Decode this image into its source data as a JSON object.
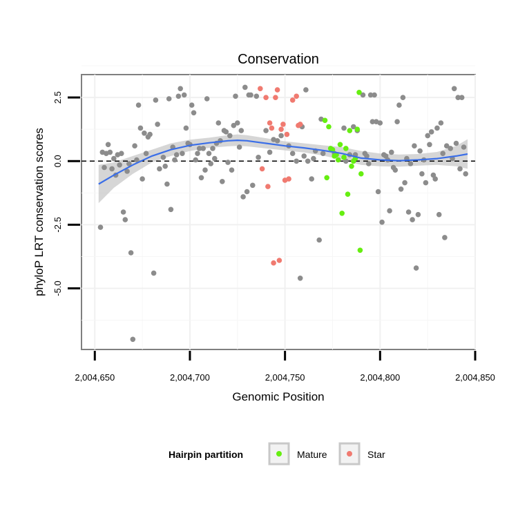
{
  "chart_data": {
    "type": "scatter",
    "title": "Conservation",
    "xlabel": "Genomic Position",
    "ylabel": "phyloP LRT conservation scores",
    "xlim": [
      2004643,
      2004850
    ],
    "ylim": [
      -7.4,
      3.4
    ],
    "x_ticks": [
      2004650,
      2004700,
      2004750,
      2004800,
      2004850
    ],
    "x_tick_labels": [
      "2,004,650",
      "2,004,700",
      "2,004,750",
      "2,004,800",
      "2,004,850"
    ],
    "y_ticks": [
      2.5,
      0,
      -2.5,
      -5
    ],
    "y_tick_labels": [
      "2.5",
      "0.0",
      "-2.5",
      "-5.0"
    ],
    "reference_line_y": 0,
    "legend": {
      "title": "Hairpin partition",
      "entries": [
        {
          "label": "Mature",
          "color": "#66ee11"
        },
        {
          "label": "Star",
          "color": "#f07a70"
        }
      ]
    },
    "colors": {
      "other": "#8c8c8c",
      "Mature": "#66ee11",
      "Star": "#f07a70",
      "smooth": "#3a6ee8",
      "band": "#c8c8c8"
    },
    "series": [
      {
        "name": "Other",
        "points": [
          [
            2004653,
            -2.6
          ],
          [
            2004654,
            0.35
          ],
          [
            2004655,
            -0.25
          ],
          [
            2004656,
            0.3
          ],
          [
            2004657,
            0.65
          ],
          [
            2004658,
            0.35
          ],
          [
            2004659,
            -0.3
          ],
          [
            2004660,
            0.1
          ],
          [
            2004661,
            -0.55
          ],
          [
            2004662,
            0.25
          ],
          [
            2004663,
            -0.15
          ],
          [
            2004664,
            0.3
          ],
          [
            2004665,
            -2.0
          ],
          [
            2004666,
            -2.3
          ],
          [
            2004667,
            -0.4
          ],
          [
            2004668,
            -0.1
          ],
          [
            2004669,
            -3.6
          ],
          [
            2004670,
            -7.0
          ],
          [
            2004671,
            0.6
          ],
          [
            2004672,
            0.05
          ],
          [
            2004673,
            2.2
          ],
          [
            2004674,
            1.3
          ],
          [
            2004675,
            -0.7
          ],
          [
            2004676,
            1.1
          ],
          [
            2004677,
            0.3
          ],
          [
            2004678,
            0.95
          ],
          [
            2004679,
            1.05
          ],
          [
            2004681,
            -4.4
          ],
          [
            2004682,
            2.4
          ],
          [
            2004683,
            1.45
          ],
          [
            2004684,
            -0.3
          ],
          [
            2004686,
            0.15
          ],
          [
            2004687,
            -0.2
          ],
          [
            2004688,
            -0.9
          ],
          [
            2004689,
            2.45
          ],
          [
            2004690,
            -1.9
          ],
          [
            2004691,
            0.55
          ],
          [
            2004692,
            0.05
          ],
          [
            2004693,
            0.25
          ],
          [
            2004694,
            2.55
          ],
          [
            2004695,
            2.85
          ],
          [
            2004696,
            0.3
          ],
          [
            2004697,
            2.6
          ],
          [
            2004698,
            1.3
          ],
          [
            2004699,
            0.7
          ],
          [
            2004700,
            0.65
          ],
          [
            2004701,
            2.2
          ],
          [
            2004702,
            1.9
          ],
          [
            2004703,
            0.05
          ],
          [
            2004704,
            0.3
          ],
          [
            2004705,
            0.5
          ],
          [
            2004706,
            -0.65
          ],
          [
            2004707,
            0.5
          ],
          [
            2004708,
            -0.35
          ],
          [
            2004709,
            2.45
          ],
          [
            2004710,
            0.3
          ],
          [
            2004711,
            -0.1
          ],
          [
            2004712,
            0.5
          ],
          [
            2004713,
            0.1
          ],
          [
            2004714,
            0.7
          ],
          [
            2004715,
            1.5
          ],
          [
            2004716,
            0.8
          ],
          [
            2004717,
            -0.8
          ],
          [
            2004718,
            1.2
          ],
          [
            2004719,
            1.15
          ],
          [
            2004720,
            -0.05
          ],
          [
            2004721,
            1.0
          ],
          [
            2004722,
            -0.35
          ],
          [
            2004723,
            1.4
          ],
          [
            2004724,
            2.55
          ],
          [
            2004725,
            1.5
          ],
          [
            2004726,
            0.55
          ],
          [
            2004727,
            1.2
          ],
          [
            2004728,
            -1.4
          ],
          [
            2004729,
            2.9
          ],
          [
            2004730,
            -1.2
          ],
          [
            2004731,
            2.6
          ],
          [
            2004732,
            2.6
          ],
          [
            2004733,
            -0.95
          ],
          [
            2004735,
            2.55
          ],
          [
            2004736,
            0.15
          ],
          [
            2004740,
            1.2
          ],
          [
            2004742,
            0.35
          ],
          [
            2004744,
            0.85
          ],
          [
            2004746,
            0.8
          ],
          [
            2004748,
            1.0
          ],
          [
            2004752,
            0.6
          ],
          [
            2004754,
            0.3
          ],
          [
            2004756,
            0.0
          ],
          [
            2004758,
            -4.6
          ],
          [
            2004759,
            1.35
          ],
          [
            2004760,
            0.2
          ],
          [
            2004761,
            2.8
          ],
          [
            2004762,
            0.0
          ],
          [
            2004764,
            -0.7
          ],
          [
            2004765,
            0.1
          ],
          [
            2004766,
            0.4
          ],
          [
            2004768,
            -3.1
          ],
          [
            2004769,
            1.65
          ],
          [
            2004770,
            0.3
          ],
          [
            2004776,
            0.3
          ],
          [
            2004781,
            1.3
          ],
          [
            2004782,
            0.0
          ],
          [
            2004784,
            0.25
          ],
          [
            2004786,
            1.35
          ],
          [
            2004787,
            0.25
          ],
          [
            2004788,
            1.2
          ],
          [
            2004791,
            2.6
          ],
          [
            2004792,
            0.3
          ],
          [
            2004793,
            0.2
          ],
          [
            2004794,
            -0.1
          ],
          [
            2004795,
            2.6
          ],
          [
            2004796,
            1.55
          ],
          [
            2004797,
            2.6
          ],
          [
            2004798,
            1.55
          ],
          [
            2004799,
            -1.2
          ],
          [
            2004800,
            1.5
          ],
          [
            2004801,
            -2.4
          ],
          [
            2004802,
            0.25
          ],
          [
            2004803,
            0.2
          ],
          [
            2004804,
            0.05
          ],
          [
            2004805,
            -1.95
          ],
          [
            2004806,
            0.35
          ],
          [
            2004807,
            -0.25
          ],
          [
            2004808,
            -0.35
          ],
          [
            2004809,
            1.55
          ],
          [
            2004810,
            2.2
          ],
          [
            2004811,
            -1.1
          ],
          [
            2004812,
            2.5
          ],
          [
            2004813,
            -0.85
          ],
          [
            2004814,
            0.1
          ],
          [
            2004815,
            -2.0
          ],
          [
            2004816,
            -0.1
          ],
          [
            2004817,
            -2.3
          ],
          [
            2004818,
            0.6
          ],
          [
            2004819,
            -4.2
          ],
          [
            2004820,
            -2.1
          ],
          [
            2004821,
            0.4
          ],
          [
            2004822,
            -0.5
          ],
          [
            2004823,
            0.05
          ],
          [
            2004824,
            -0.85
          ],
          [
            2004825,
            1.0
          ],
          [
            2004826,
            0.65
          ],
          [
            2004827,
            1.15
          ],
          [
            2004828,
            -0.55
          ],
          [
            2004829,
            -0.7
          ],
          [
            2004830,
            1.3
          ],
          [
            2004831,
            -2.1
          ],
          [
            2004832,
            1.5
          ],
          [
            2004833,
            0.3
          ],
          [
            2004834,
            -3.0
          ],
          [
            2004835,
            0.6
          ],
          [
            2004837,
            0.5
          ],
          [
            2004838,
            0.1
          ],
          [
            2004839,
            2.85
          ],
          [
            2004840,
            0.7
          ],
          [
            2004841,
            2.5
          ],
          [
            2004842,
            -0.3
          ],
          [
            2004843,
            2.5
          ],
          [
            2004844,
            0.55
          ],
          [
            2004845,
            -0.5
          ]
        ]
      },
      {
        "name": "Star",
        "points": [
          [
            2004737,
            2.85
          ],
          [
            2004738,
            -0.3
          ],
          [
            2004740,
            2.5
          ],
          [
            2004741,
            -1.0
          ],
          [
            2004742,
            1.5
          ],
          [
            2004743,
            1.3
          ],
          [
            2004744,
            -4.0
          ],
          [
            2004745,
            2.5
          ],
          [
            2004746,
            2.8
          ],
          [
            2004747,
            -3.9
          ],
          [
            2004748,
            1.25
          ],
          [
            2004749,
            1.45
          ],
          [
            2004750,
            -0.75
          ],
          [
            2004751,
            1.05
          ],
          [
            2004752,
            -0.7
          ],
          [
            2004754,
            2.4
          ],
          [
            2004756,
            2.55
          ],
          [
            2004757,
            1.4
          ],
          [
            2004758,
            1.45
          ]
        ]
      },
      {
        "name": "Mature",
        "points": [
          [
            2004771,
            1.6
          ],
          [
            2004772,
            -0.65
          ],
          [
            2004773,
            1.35
          ],
          [
            2004774,
            0.5
          ],
          [
            2004775,
            0.45
          ],
          [
            2004776,
            0.2
          ],
          [
            2004777,
            0.25
          ],
          [
            2004778,
            0.05
          ],
          [
            2004779,
            0.65
          ],
          [
            2004780,
            -2.05
          ],
          [
            2004781,
            0.15
          ],
          [
            2004782,
            0.5
          ],
          [
            2004783,
            -1.3
          ],
          [
            2004784,
            1.2
          ],
          [
            2004785,
            -0.2
          ],
          [
            2004786,
            0.0
          ],
          [
            2004787,
            0.1
          ],
          [
            2004788,
            1.25
          ],
          [
            2004789,
            2.7
          ],
          [
            2004789.5,
            -3.5
          ],
          [
            2004790,
            -0.5
          ]
        ]
      }
    ],
    "smooth_fit": {
      "x": [
        2004652,
        2004660,
        2004670,
        2004680,
        2004690,
        2004700,
        2004710,
        2004720,
        2004725,
        2004730,
        2004740,
        2004750,
        2004760,
        2004770,
        2004780,
        2004790,
        2004800,
        2004810,
        2004820,
        2004830,
        2004840,
        2004846
      ],
      "y": [
        -0.9,
        -0.55,
        -0.15,
        0.2,
        0.45,
        0.62,
        0.72,
        0.8,
        0.82,
        0.8,
        0.7,
        0.6,
        0.52,
        0.42,
        0.3,
        0.12,
        0.05,
        0.02,
        0.05,
        0.1,
        0.2,
        0.28
      ],
      "lower": [
        -1.65,
        -1.05,
        -0.5,
        -0.05,
        0.2,
        0.4,
        0.52,
        0.58,
        0.6,
        0.58,
        0.5,
        0.42,
        0.34,
        0.22,
        0.05,
        -0.15,
        -0.2,
        -0.22,
        -0.18,
        -0.15,
        -0.2,
        -0.3
      ],
      "upper": [
        -0.15,
        -0.05,
        0.2,
        0.45,
        0.7,
        0.84,
        0.92,
        1.02,
        1.05,
        1.02,
        0.9,
        0.78,
        0.7,
        0.62,
        0.55,
        0.4,
        0.3,
        0.26,
        0.28,
        0.36,
        0.6,
        0.86
      ]
    }
  }
}
